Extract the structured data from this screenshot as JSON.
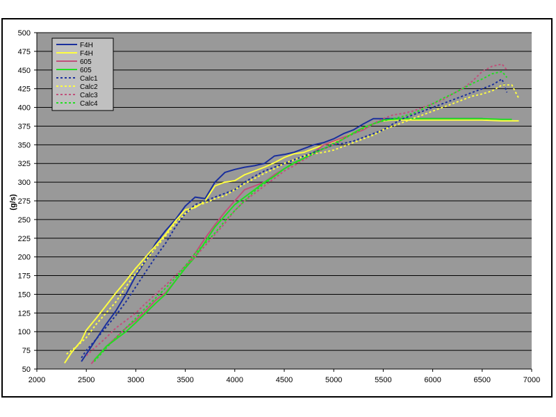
{
  "chart_data": {
    "type": "line",
    "title": "",
    "xlabel": "",
    "ylabel": "(g/s)",
    "xlim": [
      2000,
      7000
    ],
    "ylim": [
      50,
      500
    ],
    "xticks": [
      2000,
      2500,
      3000,
      3500,
      4000,
      4500,
      5000,
      5500,
      6000,
      6500,
      7000
    ],
    "yticks": [
      50,
      75,
      100,
      125,
      150,
      175,
      200,
      225,
      250,
      275,
      300,
      325,
      350,
      375,
      400,
      425,
      450,
      475,
      500
    ],
    "grid": "horizontal",
    "plot_background": "#999999",
    "legend_position": "top-left",
    "series": [
      {
        "name": "F4H",
        "color": "#1a2f9c",
        "dash": "solid",
        "x": [
          2450,
          2500,
          2600,
          2700,
          2800,
          2900,
          3000,
          3100,
          3200,
          3300,
          3400,
          3500,
          3600,
          3700,
          3800,
          3900,
          4000,
          4100,
          4200,
          4300,
          4400,
          4500,
          4600,
          4700,
          4800,
          4900,
          5000,
          5100,
          5200,
          5300,
          5400,
          5500,
          5600,
          5700,
          6000,
          6300,
          6500,
          6550
        ],
        "y": [
          60,
          70,
          90,
          110,
          128,
          150,
          175,
          195,
          218,
          235,
          250,
          268,
          280,
          278,
          300,
          313,
          317,
          320,
          322,
          325,
          335,
          337,
          340,
          345,
          350,
          353,
          358,
          365,
          370,
          378,
          385,
          385,
          385,
          385,
          385,
          385,
          385,
          383
        ]
      },
      {
        "name": "F4H",
        "color": "#ffff40",
        "dash": "solid",
        "x": [
          2280,
          2350,
          2450,
          2500,
          2600,
          2700,
          2800,
          2900,
          3000,
          3100,
          3200,
          3300,
          3400,
          3500,
          3600,
          3700,
          3800,
          3900,
          4000,
          4100,
          4200,
          4300,
          4400,
          4500,
          4600,
          4700,
          4800,
          4900,
          5000,
          5100,
          5200,
          5300,
          5400,
          5500,
          5600,
          5700,
          6000,
          6300,
          6500,
          6700,
          6870
        ],
        "y": [
          58,
          72,
          88,
          102,
          118,
          135,
          152,
          168,
          185,
          200,
          215,
          230,
          248,
          263,
          266,
          275,
          295,
          300,
          302,
          310,
          315,
          320,
          326,
          333,
          338,
          340,
          345,
          350,
          354,
          360,
          366,
          372,
          378,
          382,
          383,
          383,
          383,
          383,
          383,
          382,
          382
        ]
      },
      {
        "name": "605",
        "color": "#c0507a",
        "dash": "solid",
        "x": [
          2550,
          2600,
          2700,
          2800,
          2900,
          3000,
          3100,
          3200,
          3300,
          3400,
          3500,
          3600,
          3700,
          3800,
          3900,
          4000,
          4100,
          4200,
          4300,
          4400,
          4500,
          4600,
          4700,
          4800,
          4900,
          5000,
          5100,
          5200,
          5300,
          5400,
          5500
        ],
        "y": [
          57,
          65,
          80,
          92,
          105,
          115,
          128,
          142,
          152,
          168,
          185,
          205,
          225,
          243,
          260,
          275,
          290,
          295,
          300,
          310,
          318,
          325,
          332,
          340,
          350,
          355,
          360,
          365,
          370,
          378,
          382
        ]
      },
      {
        "name": "605",
        "color": "#22dd22",
        "dash": "solid",
        "x": [
          2580,
          2650,
          2700,
          2800,
          2900,
          3000,
          3100,
          3200,
          3300,
          3400,
          3500,
          3600,
          3700,
          3800,
          3900,
          4000,
          4100,
          4200,
          4300,
          4400,
          4500,
          4600,
          4700,
          4800,
          4900,
          5000,
          5100,
          5200,
          5300,
          5400,
          5500,
          5700,
          6000,
          6300,
          6500,
          6700,
          6800
        ],
        "y": [
          62,
          72,
          80,
          90,
          100,
          112,
          125,
          138,
          150,
          168,
          185,
          200,
          220,
          240,
          255,
          270,
          280,
          290,
          300,
          308,
          318,
          326,
          332,
          340,
          345,
          350,
          358,
          366,
          373,
          378,
          383,
          385,
          385,
          385,
          385,
          384,
          384
        ]
      },
      {
        "name": "Calc1",
        "color": "#1a2f9c",
        "dash": "dotted",
        "x": [
          2450,
          2500,
          2600,
          2700,
          2800,
          2900,
          3000,
          3100,
          3200,
          3300,
          3400,
          3500,
          3600,
          3700,
          3800,
          3900,
          4000,
          4100,
          4200,
          4300,
          4400,
          4500,
          4600,
          4700,
          4800,
          4900,
          5000,
          5100,
          5200,
          5300,
          5400,
          5500,
          5600,
          5700,
          5800,
          5900,
          6000,
          6100,
          6200,
          6300,
          6400,
          6500,
          6600,
          6700,
          6750
        ],
        "y": [
          65,
          75,
          90,
          106,
          122,
          140,
          160,
          180,
          200,
          218,
          240,
          258,
          270,
          275,
          280,
          285,
          290,
          300,
          308,
          315,
          320,
          325,
          330,
          335,
          340,
          345,
          350,
          352,
          355,
          360,
          365,
          370,
          378,
          385,
          390,
          395,
          400,
          405,
          410,
          415,
          420,
          425,
          430,
          438,
          420
        ]
      },
      {
        "name": "Calc2",
        "color": "#ffff40",
        "dash": "dotted",
        "x": [
          2300,
          2400,
          2500,
          2600,
          2700,
          2800,
          2900,
          3000,
          3100,
          3200,
          3300,
          3400,
          3500,
          3600,
          3700,
          3800,
          3900,
          4000,
          4100,
          4200,
          4300,
          4400,
          4500,
          4600,
          4700,
          4800,
          4900,
          5000,
          5100,
          5200,
          5300,
          5400,
          5500,
          5600,
          5700,
          5800,
          5900,
          6000,
          6100,
          6200,
          6300,
          6400,
          6500,
          6600,
          6700,
          6800,
          6870
        ],
        "y": [
          70,
          80,
          92,
          110,
          125,
          140,
          160,
          178,
          195,
          212,
          228,
          245,
          258,
          268,
          272,
          278,
          282,
          290,
          298,
          305,
          312,
          318,
          325,
          330,
          335,
          338,
          340,
          343,
          348,
          353,
          358,
          363,
          370,
          375,
          380,
          385,
          390,
          395,
          400,
          405,
          410,
          415,
          418,
          422,
          430,
          430,
          412
        ]
      },
      {
        "name": "Calc3",
        "color": "#c0507a",
        "dash": "dotted",
        "x": [
          2500,
          2600,
          2700,
          2800,
          2900,
          3000,
          3100,
          3200,
          3300,
          3400,
          3500,
          3600,
          3700,
          3800,
          3900,
          4000,
          4100,
          4200,
          4300,
          4400,
          4500,
          4600,
          4700,
          4800,
          4900,
          5000,
          5100,
          5200,
          5300,
          5400,
          5500,
          5600,
          5700,
          5800,
          5900,
          6000,
          6100,
          6200,
          6300,
          6400,
          6500,
          6600,
          6700,
          6750
        ],
        "y": [
          68,
          80,
          92,
          105,
          115,
          125,
          138,
          150,
          162,
          175,
          188,
          200,
          215,
          230,
          245,
          262,
          275,
          285,
          295,
          305,
          315,
          322,
          330,
          338,
          345,
          350,
          358,
          365,
          372,
          378,
          385,
          390,
          392,
          395,
          400,
          405,
          410,
          418,
          425,
          435,
          448,
          455,
          458,
          450
        ]
      },
      {
        "name": "Calc4",
        "color": "#22dd22",
        "dash": "dotted",
        "x": [
          2580,
          2700,
          2800,
          2900,
          3000,
          3100,
          3200,
          3300,
          3400,
          3500,
          3600,
          3700,
          3800,
          3900,
          4000,
          4100,
          4200,
          4300,
          4400,
          4500,
          4600,
          4700,
          4800,
          4900,
          5000,
          5100,
          5200,
          5300,
          5400,
          5500,
          5600,
          5700,
          5800,
          5900,
          6000,
          6100,
          6200,
          6300,
          6400,
          6500,
          6600,
          6700,
          6750
        ],
        "y": [
          60,
          78,
          92,
          105,
          118,
          132,
          145,
          158,
          172,
          188,
          205,
          218,
          232,
          248,
          262,
          275,
          288,
          298,
          308,
          318,
          325,
          332,
          338,
          345,
          352,
          358,
          365,
          372,
          378,
          382,
          385,
          388,
          392,
          398,
          405,
          412,
          418,
          425,
          432,
          438,
          445,
          448,
          440
        ]
      }
    ]
  }
}
